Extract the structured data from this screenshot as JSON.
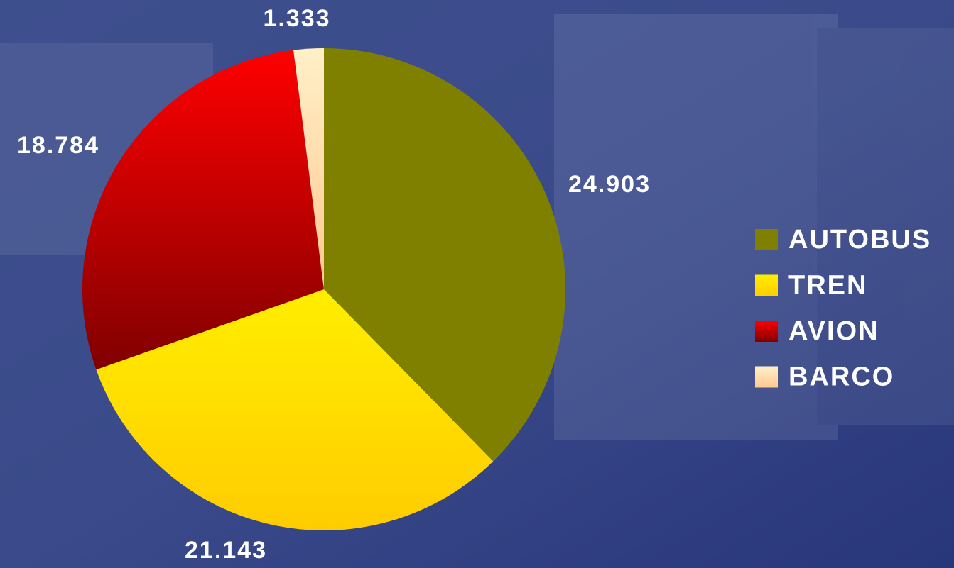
{
  "chart_data": {
    "type": "pie",
    "categories": [
      "AUTOBUS",
      "TREN",
      "AVION",
      "BARCO"
    ],
    "values": [
      24903,
      21143,
      18784,
      1333
    ],
    "value_labels": [
      "24.903",
      "21.143",
      "18.784",
      "1.333"
    ],
    "colors": [
      "#808000",
      "#ffee00",
      "#ff0000",
      "#fff0c8"
    ],
    "legend": "right"
  }
}
